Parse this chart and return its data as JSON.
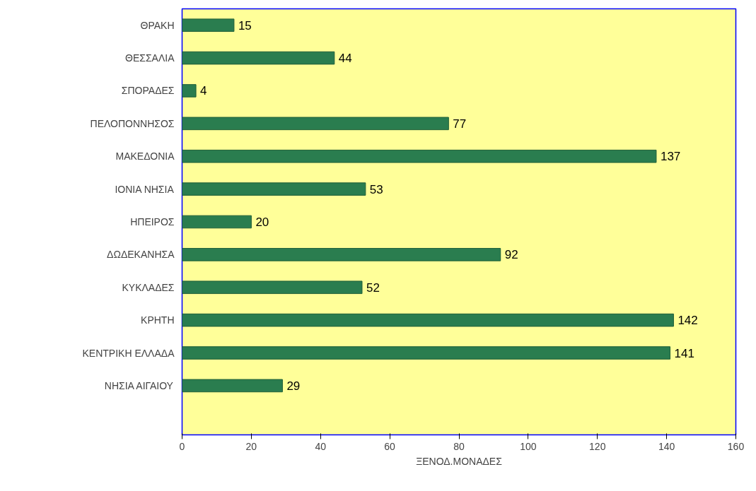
{
  "chart_data": {
    "type": "bar",
    "orientation": "horizontal",
    "xlabel": "ΞΕΝΟΔ.ΜΟΝΑΔΕΣ",
    "categories": [
      "ΘΡΑΚΗ",
      "ΘΕΣΣΑΛΙΑ",
      "ΣΠΟΡΑΔΕΣ",
      "ΠΕΛΟΠΟΝΝΗΣΟΣ",
      "ΜΑΚΕΔΟΝΙΑ",
      "ΙΟΝΙΑ ΝΗΣΙΑ",
      "ΗΠΕΙΡΟΣ",
      "ΔΩΔΕΚΑΝΗΣΑ",
      "ΚΥΚΛΑΔΕΣ",
      "ΚΡΗΤΗ",
      "ΚΕΝΤΡΙΚΗ ΕΛΛΑΔΑ",
      "ΝΗΣΙΑ ΑΙΓΑΙΟΥ",
      null
    ],
    "values": [
      15,
      44,
      4,
      77,
      137,
      53,
      20,
      92,
      52,
      142,
      141,
      29,
      null
    ],
    "color": "#2a7d4f",
    "data_labels": true,
    "grid": false,
    "xlim": [
      0,
      160
    ],
    "xticks": [
      0,
      20,
      40,
      60,
      80,
      100,
      120,
      140,
      160
    ]
  }
}
